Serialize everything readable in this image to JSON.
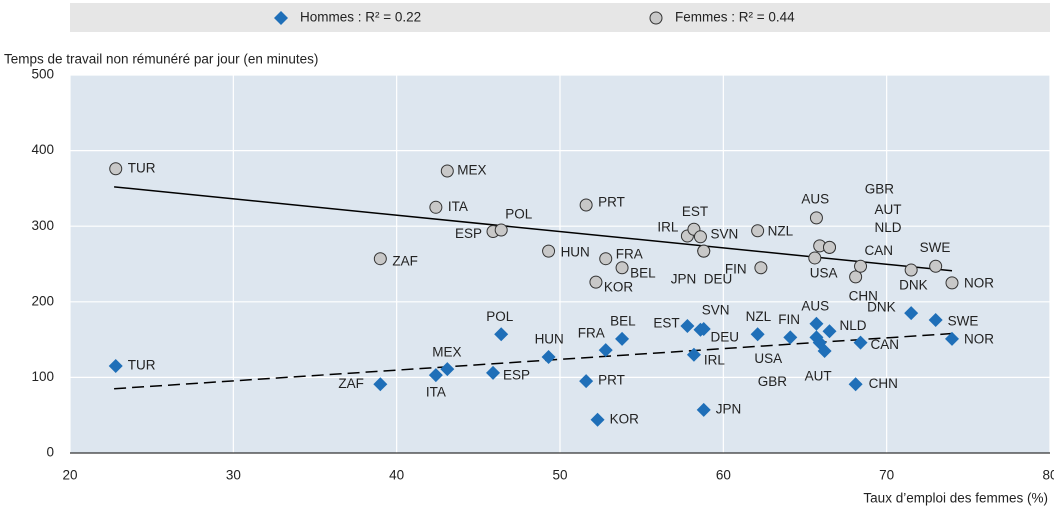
{
  "chart_data": {
    "type": "scatter",
    "ylabel": "Temps de travail non rémunéré par jour (en minutes)",
    "xlabel": "Taux d’emploi des femmes (%)",
    "xlim": [
      20,
      80
    ],
    "xticks": [
      20,
      30,
      40,
      50,
      60,
      70,
      80
    ],
    "ylim": [
      0,
      500
    ],
    "yticks": [
      0,
      100,
      200,
      300,
      400,
      500
    ],
    "grid": true,
    "series": [
      {
        "name": "Hommes : R² = 0.22",
        "color": "#1f6fb8",
        "marker": "diamond",
        "trend_style": "dashed",
        "labels": [
          "TUR",
          "ZAF",
          "ITA",
          "MEX",
          "ESP",
          "POL",
          "HUN",
          "PRT",
          "KOR",
          "FRA",
          "BEL",
          "IRL",
          "EST",
          "SVN",
          "DEU",
          "JPN",
          "NZL",
          "FIN",
          "USA",
          "AUS",
          "GBR",
          "AUT",
          "NLD",
          "CHN",
          "CAN",
          "DNK",
          "SWE",
          "NOR"
        ],
        "x": [
          22.8,
          39.0,
          42.4,
          43.1,
          45.9,
          46.4,
          49.3,
          51.6,
          52.3,
          52.8,
          53.8,
          58.2,
          57.8,
          58.8,
          58.6,
          58.8,
          62.1,
          64.1,
          65.7,
          65.7,
          65.9,
          66.2,
          66.5,
          68.1,
          68.4,
          71.5,
          73.0,
          74.0
        ],
        "values": [
          115,
          91,
          103,
          111,
          106,
          157,
          127,
          95,
          44,
          136,
          151,
          130,
          168,
          164,
          163,
          57,
          157,
          153,
          153,
          171,
          146,
          135,
          161,
          91,
          146,
          185,
          176,
          151
        ],
        "trend": {
          "x": [
            22.7,
            74.0
          ],
          "y": [
            85,
            158
          ]
        }
      },
      {
        "name": "Femmes : R² = 0.44",
        "color": "#c8c8c8",
        "marker": "circle",
        "trend_style": "solid",
        "labels": [
          "TUR",
          "ZAF",
          "ITA",
          "MEX",
          "ESP",
          "POL",
          "HUN",
          "PRT",
          "KOR",
          "FRA",
          "BEL",
          "IRL",
          "EST",
          "SVN",
          "JPN",
          "DEU",
          "NZL",
          "FIN",
          "USA",
          "AUS",
          "GBR",
          "AUT",
          "NLD",
          "CHN",
          "CAN",
          "DNK",
          "SWE",
          "NOR"
        ],
        "x": [
          22.8,
          39.0,
          42.4,
          43.1,
          45.9,
          46.4,
          49.3,
          51.6,
          52.2,
          52.8,
          53.8,
          57.8,
          58.2,
          58.6,
          58.8,
          58.8,
          62.1,
          62.3,
          65.6,
          65.7,
          65.9,
          66.5,
          66.5,
          68.1,
          68.4,
          71.5,
          73.0,
          74.0
        ],
        "values": [
          376,
          257,
          325,
          373,
          293,
          295,
          267,
          328,
          226,
          257,
          245,
          287,
          296,
          286,
          267,
          267,
          294,
          245,
          258,
          311,
          274,
          272,
          272,
          233,
          247,
          242,
          247,
          225
        ],
        "trend": {
          "x": [
            22.7,
            74.0
          ],
          "y": [
            352,
            241
          ]
        }
      }
    ]
  }
}
